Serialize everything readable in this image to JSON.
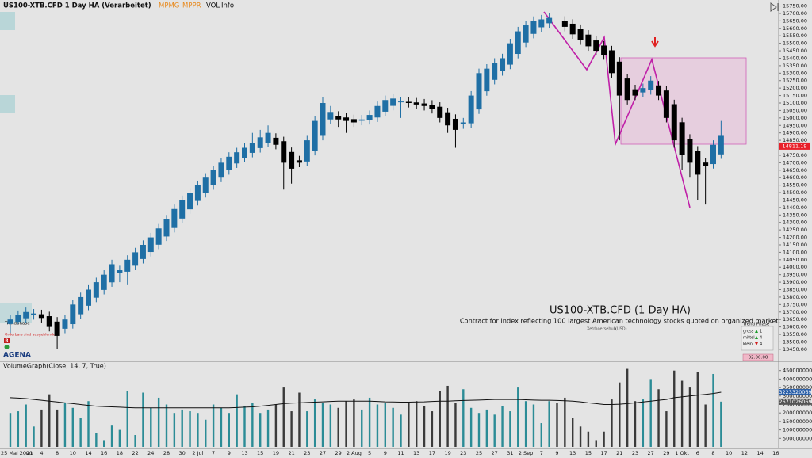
{
  "chart_data": [
    {
      "type": "candlestick",
      "title": "US100-XTB.CFD 1 Day HA (Verarbeitet)",
      "categories": [
        "25 Mai 2021",
        null,
        "1 Jun",
        null,
        "4",
        null,
        "8",
        null,
        "10",
        null,
        "14",
        null,
        "16",
        null,
        "18",
        null,
        "22",
        null,
        "24",
        null,
        "28",
        null,
        "30",
        null,
        "2 Jul",
        null,
        "7",
        null,
        "9",
        null,
        "13",
        null,
        "15",
        null,
        "19",
        null,
        "21",
        null,
        "23",
        null,
        "27",
        null,
        "29",
        null,
        "2 Aug",
        null,
        "5",
        null,
        "9",
        null,
        "11",
        null,
        "13",
        null,
        "17",
        null,
        "19",
        null,
        "23",
        null,
        "25",
        null,
        "27",
        null,
        "31",
        null,
        "2 Sep",
        null,
        "7",
        null,
        "9",
        null,
        "13",
        null,
        "15",
        null,
        "17",
        null,
        "21",
        null,
        "23",
        null,
        "27",
        null,
        "29",
        null,
        "1 Okt",
        null,
        "6",
        null,
        "8",
        null,
        "10",
        null,
        "12",
        null,
        "14",
        null,
        "16",
        null
      ],
      "open": [
        13620,
        13635,
        13658,
        13679,
        13685,
        13672,
        13636,
        13588,
        13619,
        13685,
        13742,
        13796,
        13848,
        13899,
        13960,
        13970,
        14010,
        14055,
        14102,
        14151,
        14206,
        14263,
        14326,
        14388,
        14444,
        14497,
        14549,
        14600,
        14650,
        14695,
        14732,
        14766,
        14798,
        14834,
        14867,
        14844,
        14772,
        14716,
        14708,
        14779,
        14880,
        14990,
        15015,
        15003,
        14992,
        14981,
        14986,
        15003,
        15042,
        15081,
        15106,
        15108,
        15104,
        15097,
        15089,
        15075,
        15038,
        14994,
        14957,
        14964,
        15057,
        15179,
        15255,
        15313,
        15357,
        15429,
        15505,
        15563,
        15607,
        15634,
        15652,
        15651,
        15631,
        15596,
        15558,
        15519,
        15485,
        15453,
        15377,
        15264,
        15192,
        15171,
        15186,
        15218,
        15184,
        15092,
        14971,
        14861,
        14781,
        14701,
        14691,
        14756,
        null,
        null,
        null,
        null,
        null,
        null,
        null,
        null
      ],
      "high": [
        13680,
        13710,
        13730,
        13720,
        13715,
        13702,
        13666,
        13680,
        13780,
        13830,
        13880,
        13930,
        13980,
        14050,
        14010,
        14080,
        14130,
        14180,
        14230,
        14290,
        14350,
        14420,
        14480,
        14530,
        14580,
        14630,
        14680,
        14730,
        14770,
        14800,
        14830,
        14900,
        14920,
        14950,
        14897,
        14874,
        14802,
        14746,
        14880,
        15010,
        15140,
        15080,
        15045,
        15033,
        15022,
        15020,
        15050,
        15110,
        15150,
        15160,
        15140,
        15140,
        15134,
        15127,
        15119,
        15105,
        15068,
        15024,
        15000,
        15180,
        15330,
        15360,
        15400,
        15430,
        15530,
        15610,
        15650,
        15680,
        15690,
        15700,
        15682,
        15681,
        15661,
        15626,
        15588,
        15549,
        15515,
        15483,
        15407,
        15294,
        15222,
        15230,
        15280,
        15248,
        15214,
        15122,
        15001,
        14891,
        14811,
        14731,
        14850,
        14980,
        null,
        null,
        null,
        null,
        null,
        null,
        null,
        null
      ],
      "low": [
        13560,
        13620,
        13628,
        13649,
        13630,
        13570,
        13450,
        13558,
        13589,
        13655,
        13712,
        13766,
        13818,
        13869,
        13900,
        13880,
        13980,
        14025,
        14072,
        14121,
        14176,
        14233,
        14296,
        14358,
        14414,
        14467,
        14519,
        14570,
        14620,
        14665,
        14702,
        14736,
        14768,
        14804,
        14790,
        14520,
        14560,
        14670,
        14678,
        14749,
        14850,
        14960,
        14940,
        14900,
        14940,
        14951,
        14956,
        14973,
        15012,
        15051,
        15000,
        15070,
        15060,
        15050,
        15030,
        14970,
        14900,
        14800,
        14927,
        14934,
        15027,
        15149,
        15225,
        15283,
        15327,
        15399,
        15475,
        15533,
        15577,
        15604,
        15620,
        15580,
        15530,
        15490,
        15450,
        15420,
        15390,
        15270,
        14850,
        15090,
        15120,
        15141,
        15156,
        15120,
        14970,
        14800,
        14650,
        14600,
        14450,
        14420,
        14661,
        14726,
        null,
        null,
        null,
        null,
        null,
        null,
        null,
        null
      ],
      "close": [
        13650,
        13680,
        13700,
        13690,
        13660,
        13600,
        13540,
        13650,
        13750,
        13800,
        13850,
        13900,
        13950,
        14020,
        13980,
        14050,
        14100,
        14150,
        14200,
        14260,
        14320,
        14390,
        14450,
        14500,
        14550,
        14600,
        14650,
        14700,
        14740,
        14770,
        14800,
        14830,
        14870,
        14900,
        14820,
        14700,
        14660,
        14700,
        14850,
        14980,
        15100,
        15040,
        14990,
        14980,
        14970,
        14990,
        15020,
        15080,
        15120,
        15130,
        15110,
        15100,
        15090,
        15080,
        15060,
        15000,
        14950,
        14920,
        14970,
        15150,
        15300,
        15330,
        15370,
        15400,
        15500,
        15580,
        15620,
        15650,
        15660,
        15670,
        15650,
        15610,
        15560,
        15520,
        15480,
        15450,
        15420,
        15300,
        15150,
        15120,
        15150,
        15200,
        15250,
        15150,
        15000,
        14850,
        14750,
        14700,
        14620,
        14680,
        14820,
        14880,
        null,
        null,
        null,
        null,
        null,
        null,
        null,
        null
      ],
      "up_color": "#1f6fa5",
      "down_color": "#000000",
      "ylim": [
        13375,
        15790
      ],
      "yticks": [
        {
          "value": 13450,
          "label": "13450.00"
        },
        {
          "value": 13500,
          "label": "13500.00"
        },
        {
          "value": 13550,
          "label": "13550.00"
        },
        {
          "value": 13600,
          "label": "13600.00"
        },
        {
          "value": 13650,
          "label": "13650.00"
        },
        {
          "value": 13700,
          "label": "13700.00"
        },
        {
          "value": 13750,
          "label": "13750.00"
        },
        {
          "value": 13800,
          "label": "13800.00"
        },
        {
          "value": 13850,
          "label": "13850.00"
        },
        {
          "value": 13900,
          "label": "13900.00"
        },
        {
          "value": 13950,
          "label": "13950.00"
        },
        {
          "value": 14000,
          "label": "14000.00"
        },
        {
          "value": 14050,
          "label": "14050.00"
        },
        {
          "value": 14100,
          "label": "14100.00"
        },
        {
          "value": 14150,
          "label": "14150.00"
        },
        {
          "value": 14200,
          "label": "14200.00"
        },
        {
          "value": 14250,
          "label": "14250.00"
        },
        {
          "value": 14300,
          "label": "14300.00"
        },
        {
          "value": 14350,
          "label": "14350.00"
        },
        {
          "value": 14400,
          "label": "14400.00"
        },
        {
          "value": 14450,
          "label": "14450.00"
        },
        {
          "value": 14500,
          "label": "14500.00"
        },
        {
          "value": 14550,
          "label": "14550.00"
        },
        {
          "value": 14600,
          "label": "14600.00"
        },
        {
          "value": 14650,
          "label": "14650.00"
        },
        {
          "value": 14700,
          "label": "14700.00"
        },
        {
          "value": 14750,
          "label": "14750.00"
        },
        {
          "value": 14800,
          "label": "14800.00"
        },
        {
          "value": 14850,
          "label": "14850.00"
        },
        {
          "value": 14900,
          "label": "14900.00"
        },
        {
          "value": 14950,
          "label": "14950.00"
        },
        {
          "value": 15000,
          "label": "15000.00"
        },
        {
          "value": 15050,
          "label": "15050.00"
        },
        {
          "value": 15100,
          "label": "15100.00"
        },
        {
          "value": 15150,
          "label": "15150.00"
        },
        {
          "value": 15200,
          "label": "15200.00"
        },
        {
          "value": 15250,
          "label": "15250.00"
        },
        {
          "value": 15300,
          "label": "15300.00"
        },
        {
          "value": 15350,
          "label": "15350.00"
        },
        {
          "value": 15400,
          "label": "15400.00"
        },
        {
          "value": 15450,
          "label": "15450.00"
        },
        {
          "value": 15500,
          "label": "15500.00"
        },
        {
          "value": 15550,
          "label": "15550.00"
        },
        {
          "value": 15600,
          "label": "15600.00"
        },
        {
          "value": 15650,
          "label": "15650.00"
        },
        {
          "value": 15700,
          "label": "15700.00"
        },
        {
          "value": 15750,
          "label": "15750.00"
        }
      ],
      "last_price": 14811.19,
      "last_price_color": "#e8202a",
      "grid": false
    },
    {
      "type": "bar",
      "title": "VolumeGraph(Close, 14, 7, True)",
      "values": [
        2000000000.0,
        2100000000.0,
        2500000000.0,
        1200000000.0,
        2200000000.0,
        3100000000.0,
        2200000000.0,
        2600000000.0,
        2300000000.0,
        1700000000.0,
        2700000000.0,
        800000000.0,
        400000000.0,
        1300000000.0,
        1000000000.0,
        3300000000.0,
        700000000.0,
        3200000000.0,
        2300000000.0,
        2900000000.0,
        2500000000.0,
        2000000000.0,
        2200000000.0,
        2100000000.0,
        2000000000.0,
        1600000000.0,
        2500000000.0,
        2300000000.0,
        2000000000.0,
        3100000000.0,
        2400000000.0,
        2600000000.0,
        2000000000.0,
        2200000000.0,
        2500000000.0,
        3500000000.0,
        2100000000.0,
        3200000000.0,
        2100000000.0,
        2800000000.0,
        2600000000.0,
        2500000000.0,
        2300000000.0,
        2700000000.0,
        2800000000.0,
        2200000000.0,
        2900000000.0,
        2500000000.0,
        2600000000.0,
        2300000000.0,
        1900000000.0,
        2600000000.0,
        2700000000.0,
        2400000000.0,
        2100000000.0,
        3300000000.0,
        3600000000.0,
        2600000000.0,
        3400000000.0,
        2300000000.0,
        2000000000.0,
        2200000000.0,
        1900000000.0,
        2400000000.0,
        2100000000.0,
        3500000000.0,
        2700000000.0,
        2500000000.0,
        1400000000.0,
        2700000000.0,
        2600000000.0,
        2900000000.0,
        1700000000.0,
        1200000000.0,
        900000000.0,
        400000000.0,
        900000000.0,
        2800000000.0,
        3800000000.0,
        4600000000.0,
        2700000000.0,
        2800000000.0,
        4000000000.0,
        3400000000.0,
        2100000000.0,
        4500000000.0,
        3900000000.0,
        3500000000.0,
        4400000000.0,
        2500000000.0,
        4300000000.0,
        2671026069,
        null,
        null,
        null,
        null,
        null,
        null,
        null,
        null
      ],
      "ma": [
        2900000000.0,
        2880000000.0,
        2850000000.0,
        2800000000.0,
        2750000000.0,
        2700000000.0,
        2650000000.0,
        2600000000.0,
        2550000000.0,
        2500000000.0,
        2450000000.0,
        2400000000.0,
        2380000000.0,
        2360000000.0,
        2340000000.0,
        2320000000.0,
        2300000000.0,
        2300000000.0,
        2300000000.0,
        2300000000.0,
        2300000000.0,
        2300000000.0,
        2300000000.0,
        2300000000.0,
        2300000000.0,
        2300000000.0,
        2300000000.0,
        2300000000.0,
        2300000000.0,
        2320000000.0,
        2340000000.0,
        2360000000.0,
        2400000000.0,
        2450000000.0,
        2500000000.0,
        2550000000.0,
        2580000000.0,
        2600000000.0,
        2620000000.0,
        2640000000.0,
        2660000000.0,
        2680000000.0,
        2700000000.0,
        2700000000.0,
        2700000000.0,
        2700000000.0,
        2700000000.0,
        2680000000.0,
        2660000000.0,
        2650000000.0,
        2640000000.0,
        2640000000.0,
        2650000000.0,
        2660000000.0,
        2680000000.0,
        2700000000.0,
        2700000000.0,
        2720000000.0,
        2740000000.0,
        2750000000.0,
        2760000000.0,
        2780000000.0,
        2800000000.0,
        2800000000.0,
        2800000000.0,
        2800000000.0,
        2780000000.0,
        2760000000.0,
        2750000000.0,
        2750000000.0,
        2740000000.0,
        2720000000.0,
        2700000000.0,
        2660000000.0,
        2600000000.0,
        2550000000.0,
        2500000000.0,
        2500000000.0,
        2520000000.0,
        2550000000.0,
        2600000000.0,
        2650000000.0,
        2700000000.0,
        2750000000.0,
        2800000000.0,
        2900000000.0,
        2950000000.0,
        3000000000.0,
        3050000000.0,
        3100000000.0,
        3150000000.0,
        3223320069,
        null,
        null,
        null,
        null,
        null,
        null,
        null,
        null
      ],
      "up_color": "#2b8c96",
      "down_color": "#3a3a3a",
      "ma_color": "#111111",
      "ylim": [
        0,
        5000000000
      ],
      "yticks": [
        500000000,
        1000000000,
        1500000000,
        2000000000,
        2500000000,
        3000000000,
        3500000000,
        4000000000,
        4500000000
      ]
    }
  ],
  "ui": {
    "toolbar": [
      "MPMG",
      "MPPR",
      "VOL",
      "Info"
    ],
    "instrument": "US100-XTB.CFD (1 Day HA)",
    "description": "Contract for index reflecting 100 largest American technology stocks quoted on organized market.",
    "exchange": "Xetrboersehub",
    "currency": "(USD)",
    "trend_phase": {
      "title": "Trend Phase",
      "rows": [
        {
          "label": "gross",
          "value": "1"
        },
        {
          "label": "mittel",
          "value": "4"
        },
        {
          "label": "klein",
          "value": "4"
        }
      ]
    },
    "timer": "02:00:00",
    "trendphase_label": "Trendphase",
    "orderbars": "Orderbars sind ausgeblendet",
    "r_badge": "R",
    "logo": "AGENA"
  }
}
